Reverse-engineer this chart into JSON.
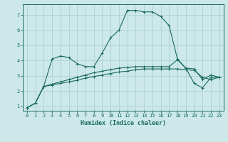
{
  "xlabel": "Humidex (Indice chaleur)",
  "bg_color": "#cce8e8",
  "grid_color": "#aacccc",
  "line_color": "#1a6b5a",
  "xlim": [
    -0.5,
    23.5
  ],
  "ylim": [
    0.7,
    7.7
  ],
  "xticks": [
    0,
    1,
    2,
    3,
    4,
    5,
    6,
    7,
    8,
    9,
    10,
    11,
    12,
    13,
    14,
    15,
    16,
    17,
    18,
    19,
    20,
    21,
    22,
    23
  ],
  "yticks": [
    1,
    2,
    3,
    4,
    5,
    6,
    7
  ],
  "curve1_x": [
    0,
    1,
    2,
    3,
    4,
    5,
    6,
    7,
    8,
    9,
    10,
    11,
    12,
    13,
    14,
    15,
    16,
    17,
    18,
    19,
    20,
    21,
    22,
    23
  ],
  "curve1_y": [
    0.9,
    1.2,
    2.3,
    4.1,
    4.3,
    4.2,
    3.8,
    3.6,
    3.6,
    4.5,
    5.5,
    6.0,
    7.3,
    7.3,
    7.2,
    7.2,
    6.9,
    6.3,
    4.1,
    3.5,
    2.5,
    2.2,
    2.9,
    2.9
  ],
  "curve2_x": [
    0,
    1,
    2,
    3,
    4,
    5,
    6,
    7,
    8,
    9,
    10,
    11,
    12,
    13,
    14,
    15,
    16,
    17,
    18,
    19,
    20,
    21,
    22,
    23
  ],
  "curve2_y": [
    0.9,
    1.2,
    2.3,
    2.4,
    2.5,
    2.6,
    2.7,
    2.85,
    2.95,
    3.05,
    3.15,
    3.25,
    3.3,
    3.4,
    3.45,
    3.45,
    3.45,
    3.45,
    3.45,
    3.4,
    3.35,
    2.9,
    2.75,
    2.9
  ],
  "curve3_x": [
    0,
    1,
    2,
    3,
    4,
    5,
    6,
    7,
    8,
    9,
    10,
    11,
    12,
    13,
    14,
    15,
    16,
    17,
    18,
    19,
    20,
    21,
    22,
    23
  ],
  "curve3_y": [
    0.9,
    1.2,
    2.3,
    2.45,
    2.6,
    2.75,
    2.9,
    3.05,
    3.2,
    3.3,
    3.4,
    3.5,
    3.55,
    3.6,
    3.6,
    3.6,
    3.6,
    3.6,
    4.05,
    3.5,
    3.45,
    2.75,
    3.05,
    2.9
  ]
}
